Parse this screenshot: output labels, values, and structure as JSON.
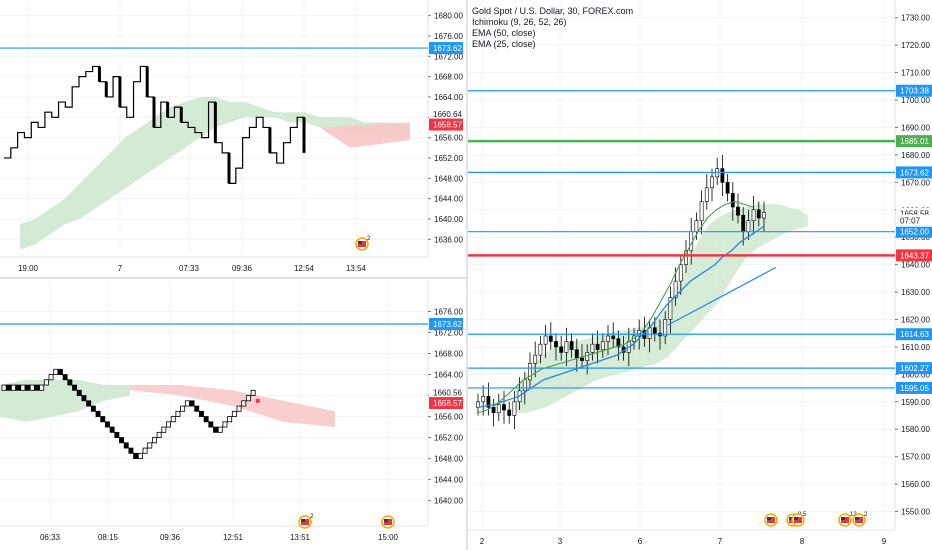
{
  "colors": {
    "level_blue": "#2196f3",
    "level_green": "#4caf50",
    "level_red": "#f23645",
    "price_badge_red": "#f23645",
    "cloud_green": "#c8e6c9",
    "cloud_red": "#f8c6c6",
    "ema_50": "#1e88e5",
    "ema_25": "#43a047",
    "candle": "#000000",
    "grid": "#f0f3fa",
    "axis_border": "#e0e3eb"
  },
  "chart_data": [
    {
      "id": "top-left",
      "type": "line",
      "style": "kagi",
      "price_axis": {
        "ticks": [
          "1680.00",
          "1676.00",
          "1672.00",
          "1668.00",
          "1664.00",
          "1660.00",
          "1656.00",
          "1652.00",
          "1648.00",
          "1644.00",
          "1640.00",
          "1636.00"
        ],
        "range": [
          1633.5,
          1681.5
        ]
      },
      "time_axis": {
        "ticks": [
          "19:00",
          "7",
          "07:33",
          "09:36",
          "12:54",
          "13:54"
        ]
      },
      "levels": [
        {
          "value": 1673.62,
          "label": "1673.62",
          "color": "#2196f3"
        }
      ],
      "badges": [
        {
          "value": 1660.64,
          "label": "1660.64",
          "style": "plain"
        },
        {
          "value": 1658.57,
          "label": "1658.57",
          "style": "red"
        }
      ],
      "series": {
        "values": [
          1652,
          1654,
          1657,
          1656,
          1659,
          1658,
          1661,
          1660,
          1663,
          1662,
          1666,
          1668,
          1669,
          1670,
          1667,
          1664,
          1668,
          1662,
          1660,
          1667,
          1670,
          1664,
          1658,
          1663,
          1660,
          1662,
          1659,
          1658,
          1657,
          1656,
          1663,
          1655,
          1653,
          1647,
          1650,
          1656,
          1658,
          1660,
          1658,
          1653,
          1651,
          1655,
          1658,
          1660,
          1653
        ],
        "cloud_upper": [
          1639,
          1640,
          1642,
          1644,
          1647,
          1650,
          1653,
          1656,
          1658,
          1660,
          1662,
          1663,
          1664,
          1664,
          1663,
          1663,
          1662,
          1661,
          1661,
          1661,
          1660,
          1660,
          1660,
          1659,
          1659,
          1659,
          1658
        ],
        "cloud_lower": [
          1634,
          1635,
          1637,
          1639,
          1640,
          1642,
          1644,
          1646,
          1648,
          1650,
          1652,
          1654,
          1656,
          1658,
          1659,
          1660,
          1660,
          1660,
          1659,
          1659,
          1658,
          1658,
          1657,
          1657,
          1656,
          1656,
          1656
        ]
      },
      "events": [
        {
          "count": "2"
        }
      ]
    },
    {
      "id": "bottom-left",
      "type": "line",
      "style": "renko",
      "price_axis": {
        "ticks": [
          "1676.00",
          "1672.00",
          "1668.00",
          "1664.00",
          "1660.00",
          "1656.00",
          "1652.00",
          "1648.00",
          "1644.00",
          "1640.00"
        ],
        "range": [
          1636.5,
          1678.0
        ]
      },
      "time_axis": {
        "ticks": [
          "06:33",
          "08:15",
          "09:36",
          "12:51",
          "13:51",
          "15:00"
        ]
      },
      "levels": [
        {
          "value": 1673.62,
          "label": "1673.62",
          "color": "#2196f3"
        }
      ],
      "badges": [
        {
          "value": 1660.56,
          "label": "1660.56",
          "style": "plain"
        },
        {
          "value": 1658.57,
          "label": "1658.57",
          "style": "red"
        }
      ],
      "series": {
        "values": [
          1662,
          1661,
          1662,
          1661,
          1662,
          1661,
          1662,
          1661,
          1662,
          1663,
          1664,
          1665,
          1664,
          1663,
          1662,
          1661,
          1660,
          1659,
          1658,
          1657,
          1656,
          1655,
          1654,
          1653,
          1652,
          1651,
          1650,
          1649,
          1648,
          1649,
          1650,
          1651,
          1652,
          1653,
          1654,
          1655,
          1656,
          1657,
          1658,
          1659,
          1658,
          1657,
          1656,
          1655,
          1654,
          1653,
          1654,
          1655,
          1656,
          1657,
          1658,
          1659,
          1660,
          1661
        ],
        "cloud_upper": [
          1662,
          1663,
          1663,
          1663,
          1662,
          1662
        ],
        "cloud_lower": [
          1656,
          1655,
          1656,
          1657,
          1659,
          1660
        ],
        "cloud_red_upper": [
          1662,
          1662,
          1661,
          1659,
          1657
        ],
        "cloud_red_lower": [
          1661,
          1660,
          1658,
          1655,
          1654
        ]
      },
      "events": [
        {
          "count": "2"
        },
        {
          "count": ""
        }
      ]
    },
    {
      "id": "right",
      "type": "line",
      "style": "candlestick",
      "title": "Gold Spot / U.S. Dollar, 30, FOREX.com",
      "indicators": [
        "Ichimoku (9, 26, 52, 26)",
        "EMA (50, close)",
        "EMA (25, close)"
      ],
      "price_axis": {
        "ticks": [
          "1730.00",
          "1720.00",
          "1710.00",
          "1700.00",
          "1690.00",
          "1680.00",
          "1670.00",
          "1660.00",
          "1650.00",
          "1640.00",
          "1630.00",
          "1620.00",
          "1610.00",
          "1600.00",
          "1590.00",
          "1580.00",
          "1570.00",
          "1560.00",
          "1550.00"
        ],
        "range": [
          1544,
          1735
        ]
      },
      "time_axis": {
        "ticks": [
          "2",
          "3",
          "6",
          "7",
          "8",
          "9"
        ]
      },
      "levels": [
        {
          "value": 1703.38,
          "label": "1703.38",
          "color": "#2196f3"
        },
        {
          "value": 1685.01,
          "label": "1685.01",
          "color": "#4caf50"
        },
        {
          "value": 1673.62,
          "label": "1673.62",
          "color": "#2196f3"
        },
        {
          "value": 1652.0,
          "label": "1652.00",
          "color": "#2196f3"
        },
        {
          "value": 1643.37,
          "label": "1643.37",
          "color": "#f23645"
        },
        {
          "value": 1614.63,
          "label": "1614.63",
          "color": "#2196f3"
        },
        {
          "value": 1602.27,
          "label": "1602.27",
          "color": "#2196f3"
        },
        {
          "value": 1595.05,
          "label": "1595.05",
          "color": "#2196f3"
        }
      ],
      "badges": [
        {
          "value": 1658.58,
          "label": "1658.58",
          "style": "plain"
        },
        {
          "value": 1656.0,
          "label": "07:07",
          "style": "plain"
        }
      ],
      "series": {
        "close": [
          1590,
          1592,
          1588,
          1586,
          1589,
          1587,
          1585,
          1590,
          1594,
          1598,
          1604,
          1607,
          1611,
          1614,
          1612,
          1610,
          1608,
          1612,
          1609,
          1606,
          1605,
          1608,
          1611,
          1609,
          1612,
          1614,
          1613,
          1610,
          1608,
          1612,
          1614,
          1616,
          1613,
          1617,
          1615,
          1614,
          1620,
          1628,
          1634,
          1640,
          1645,
          1652,
          1656,
          1663,
          1668,
          1672,
          1675,
          1670,
          1666,
          1661,
          1658,
          1652,
          1656,
          1660,
          1657,
          1659
        ],
        "ema_50": [
          1588,
          1588.5,
          1589,
          1590,
          1591,
          1592,
          1594,
          1596,
          1598,
          1599,
          1600,
          1601,
          1602,
          1603,
          1604,
          1605,
          1606,
          1607,
          1609,
          1611,
          1614,
          1617,
          1621,
          1625,
          1628,
          1631,
          1634,
          1636,
          1638,
          1640,
          1643,
          1645,
          1648,
          1650,
          1652,
          1654
        ],
        "ema_25": [
          1586,
          1587,
          1589,
          1592,
          1595,
          1598,
          1600,
          1602,
          1603,
          1604,
          1605,
          1606,
          1607,
          1608,
          1609,
          1610,
          1611,
          1613,
          1616,
          1621,
          1627,
          1633,
          1640,
          1646,
          1652,
          1657,
          1660,
          1662,
          1663,
          1662,
          1661
        ],
        "trendline": [
          1618,
          1639
        ],
        "cloud_upper": [
          1596,
          1600,
          1605,
          1608,
          1610,
          1611,
          1612,
          1613,
          1614,
          1615,
          1616,
          1616,
          1617,
          1618,
          1620,
          1624,
          1632,
          1640,
          1648,
          1654,
          1657,
          1659,
          1660,
          1661,
          1662,
          1662,
          1662,
          1661,
          1660,
          1658
        ],
        "cloud_lower": [
          1586,
          1586,
          1587,
          1588,
          1590,
          1592,
          1594,
          1596,
          1598,
          1599,
          1600,
          1601,
          1602,
          1603,
          1604,
          1606,
          1610,
          1614,
          1618,
          1622,
          1626,
          1632,
          1638,
          1643,
          1646,
          1648,
          1650,
          1652,
          1653,
          1654
        ]
      },
      "events": [
        {
          "count": ""
        },
        {
          "count": "8"
        },
        {
          "count": "5"
        },
        {
          "count": "12"
        },
        {
          "count": "2"
        }
      ]
    }
  ]
}
